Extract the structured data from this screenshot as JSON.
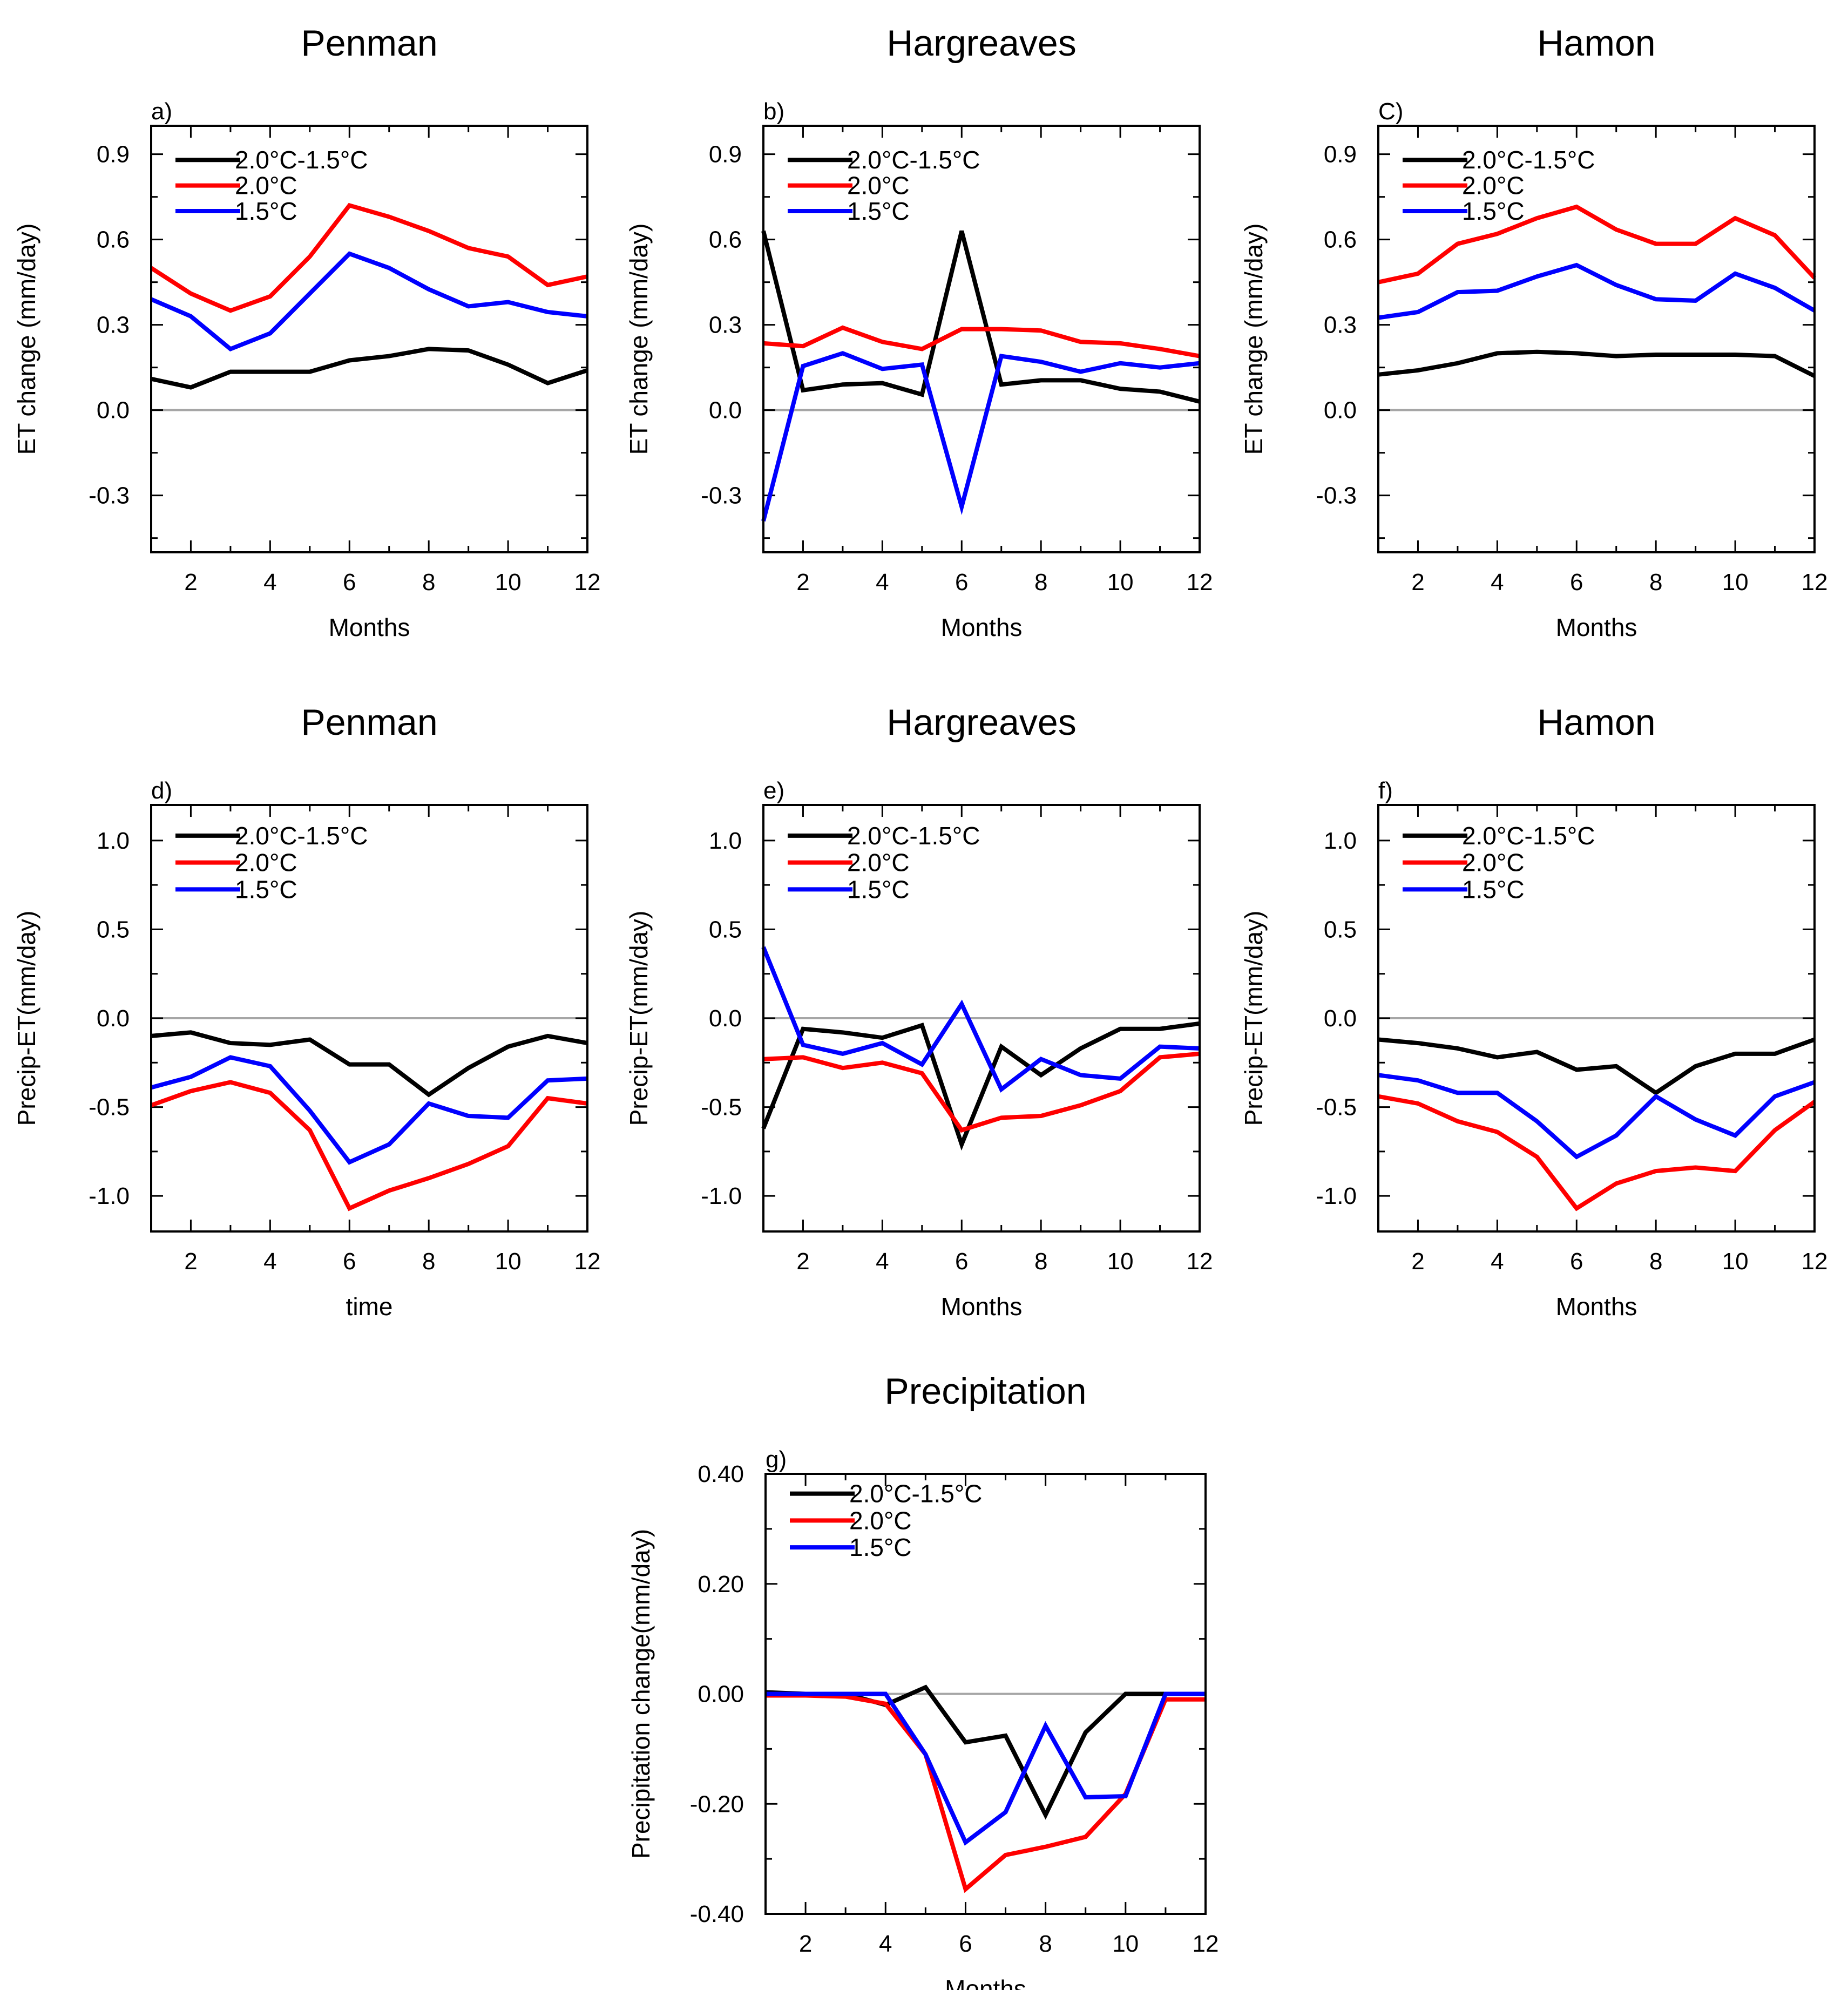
{
  "chart_data": [
    {
      "type": "line",
      "panel_label": "a)",
      "title": "Penman",
      "xlabel": "Months",
      "ylabel": "ET change (mm/day)",
      "xlim": [
        1,
        12
      ],
      "ylim": [
        -0.5,
        1.0
      ],
      "xticks": [
        "2",
        "4",
        "6",
        "8",
        "10",
        "12"
      ],
      "yticks": [
        "0.9",
        "0.6",
        "0.3",
        "0.0",
        "-0.3"
      ],
      "x": [
        1,
        2,
        3,
        4,
        5,
        6,
        7,
        8,
        9,
        10,
        11,
        12
      ],
      "series": [
        {
          "name": "2.0°C-1.5°C",
          "color": "#000000",
          "values": [
            0.11,
            0.08,
            0.135,
            0.135,
            0.135,
            0.175,
            0.19,
            0.215,
            0.21,
            0.16,
            0.095,
            0.14
          ]
        },
        {
          "name": "2.0°C",
          "color": "#ff0000",
          "values": [
            0.5,
            0.41,
            0.35,
            0.4,
            0.54,
            0.72,
            0.68,
            0.63,
            0.57,
            0.54,
            0.44,
            0.47
          ]
        },
        {
          "name": "1.5°C",
          "color": "#0000ff",
          "values": [
            0.39,
            0.33,
            0.215,
            0.27,
            0.41,
            0.55,
            0.5,
            0.425,
            0.365,
            0.38,
            0.345,
            0.33
          ]
        }
      ]
    },
    {
      "type": "line",
      "panel_label": "b)",
      "title": "Hargreaves",
      "xlabel": "Months",
      "ylabel": "ET change (mm/day)",
      "xlim": [
        1,
        12
      ],
      "ylim": [
        -0.5,
        1.0
      ],
      "xticks": [
        "2",
        "4",
        "6",
        "8",
        "10",
        "12"
      ],
      "yticks": [
        "0.9",
        "0.6",
        "0.3",
        "0.0",
        "-0.3"
      ],
      "x": [
        1,
        2,
        3,
        4,
        5,
        6,
        7,
        8,
        9,
        10,
        11,
        12
      ],
      "series": [
        {
          "name": "2.0°C-1.5°C",
          "color": "#000000",
          "values": [
            0.63,
            0.07,
            0.09,
            0.095,
            0.055,
            0.63,
            0.09,
            0.105,
            0.105,
            0.075,
            0.065,
            0.03
          ]
        },
        {
          "name": "2.0°C",
          "color": "#ff0000",
          "values": [
            0.235,
            0.225,
            0.29,
            0.24,
            0.215,
            0.285,
            0.285,
            0.28,
            0.24,
            0.235,
            0.215,
            0.19
          ]
        },
        {
          "name": "1.5°C",
          "color": "#0000ff",
          "values": [
            -0.39,
            0.155,
            0.2,
            0.145,
            0.16,
            -0.34,
            0.19,
            0.17,
            0.135,
            0.165,
            0.15,
            0.165
          ]
        }
      ]
    },
    {
      "type": "line",
      "panel_label": "C)",
      "title": "Hamon",
      "xlabel": "Months",
      "ylabel": "ET change (mm/day)",
      "xlim": [
        1,
        12
      ],
      "ylim": [
        -0.5,
        1.0
      ],
      "xticks": [
        "2",
        "4",
        "6",
        "8",
        "10",
        "12"
      ],
      "yticks": [
        "0.9",
        "0.6",
        "0.3",
        "0.0",
        "-0.3"
      ],
      "x": [
        1,
        2,
        3,
        4,
        5,
        6,
        7,
        8,
        9,
        10,
        11,
        12
      ],
      "series": [
        {
          "name": "2.0°C-1.5°C",
          "color": "#000000",
          "values": [
            0.125,
            0.14,
            0.165,
            0.2,
            0.205,
            0.2,
            0.19,
            0.195,
            0.195,
            0.195,
            0.19,
            0.12
          ]
        },
        {
          "name": "2.0°C",
          "color": "#ff0000",
          "values": [
            0.45,
            0.48,
            0.585,
            0.62,
            0.675,
            0.715,
            0.635,
            0.585,
            0.585,
            0.675,
            0.615,
            0.465
          ]
        },
        {
          "name": "1.5°C",
          "color": "#0000ff",
          "values": [
            0.325,
            0.345,
            0.415,
            0.42,
            0.47,
            0.51,
            0.44,
            0.39,
            0.385,
            0.48,
            0.43,
            0.35
          ]
        }
      ]
    },
    {
      "type": "line",
      "panel_label": "d)",
      "title": "Penman",
      "xlabel": "time",
      "ylabel": "Precip-ET(mm/day)",
      "xlim": [
        1,
        12
      ],
      "ylim": [
        -1.2,
        1.2
      ],
      "xticks": [
        "2",
        "4",
        "6",
        "8",
        "10",
        "12"
      ],
      "yticks": [
        "1.0",
        "0.5",
        "0.0",
        "-0.5",
        "-1.0"
      ],
      "x": [
        1,
        2,
        3,
        4,
        5,
        6,
        7,
        8,
        9,
        10,
        11,
        12
      ],
      "series": [
        {
          "name": "2.0°C-1.5°C",
          "color": "#000000",
          "values": [
            -0.1,
            -0.08,
            -0.14,
            -0.15,
            -0.12,
            -0.26,
            -0.26,
            -0.43,
            -0.28,
            -0.16,
            -0.1,
            -0.14
          ]
        },
        {
          "name": "2.0°C",
          "color": "#ff0000",
          "values": [
            -0.49,
            -0.41,
            -0.36,
            -0.42,
            -0.63,
            -1.07,
            -0.97,
            -0.9,
            -0.82,
            -0.72,
            -0.45,
            -0.48
          ]
        },
        {
          "name": "1.5°C",
          "color": "#0000ff",
          "values": [
            -0.39,
            -0.33,
            -0.22,
            -0.27,
            -0.52,
            -0.81,
            -0.71,
            -0.48,
            -0.55,
            -0.56,
            -0.35,
            -0.34
          ]
        }
      ]
    },
    {
      "type": "line",
      "panel_label": "e)",
      "title": "Hargreaves",
      "xlabel": "Months",
      "ylabel": "Precip-ET(mm/day)",
      "xlim": [
        1,
        12
      ],
      "ylim": [
        -1.2,
        1.2
      ],
      "xticks": [
        "2",
        "4",
        "6",
        "8",
        "10",
        "12"
      ],
      "yticks": [
        "1.0",
        "0.5",
        "0.0",
        "-0.5",
        "-1.0"
      ],
      "x": [
        1,
        2,
        3,
        4,
        5,
        6,
        7,
        8,
        9,
        10,
        11,
        12
      ],
      "series": [
        {
          "name": "2.0°C-1.5°C",
          "color": "#000000",
          "values": [
            -0.62,
            -0.06,
            -0.08,
            -0.11,
            -0.04,
            -0.71,
            -0.16,
            -0.32,
            -0.17,
            -0.06,
            -0.06,
            -0.03
          ]
        },
        {
          "name": "2.0°C",
          "color": "#ff0000",
          "values": [
            -0.23,
            -0.22,
            -0.28,
            -0.25,
            -0.31,
            -0.63,
            -0.56,
            -0.55,
            -0.49,
            -0.41,
            -0.22,
            -0.2
          ]
        },
        {
          "name": "1.5°C",
          "color": "#0000ff",
          "values": [
            0.4,
            -0.15,
            -0.2,
            -0.14,
            -0.26,
            0.08,
            -0.4,
            -0.23,
            -0.32,
            -0.34,
            -0.16,
            -0.17
          ]
        }
      ]
    },
    {
      "type": "line",
      "panel_label": "f)",
      "title": "Hamon",
      "xlabel": "Months",
      "ylabel": "Precip-ET(mm/day)",
      "xlim": [
        1,
        12
      ],
      "ylim": [
        -1.2,
        1.2
      ],
      "xticks": [
        "2",
        "4",
        "6",
        "8",
        "10",
        "12"
      ],
      "yticks": [
        "1.0",
        "0.5",
        "0.0",
        "-0.5",
        "-1.0"
      ],
      "x": [
        1,
        2,
        3,
        4,
        5,
        6,
        7,
        8,
        9,
        10,
        11,
        12
      ],
      "series": [
        {
          "name": "2.0°C-1.5°C",
          "color": "#000000",
          "values": [
            -0.12,
            -0.14,
            -0.17,
            -0.22,
            -0.19,
            -0.29,
            -0.27,
            -0.42,
            -0.27,
            -0.2,
            -0.2,
            -0.12
          ]
        },
        {
          "name": "2.0°C",
          "color": "#ff0000",
          "values": [
            -0.44,
            -0.48,
            -0.58,
            -0.64,
            -0.78,
            -1.07,
            -0.93,
            -0.86,
            -0.84,
            -0.86,
            -0.63,
            -0.47
          ]
        },
        {
          "name": "1.5°C",
          "color": "#0000ff",
          "values": [
            -0.32,
            -0.35,
            -0.42,
            -0.42,
            -0.58,
            -0.78,
            -0.66,
            -0.44,
            -0.57,
            -0.66,
            -0.44,
            -0.36
          ]
        }
      ]
    },
    {
      "type": "line",
      "panel_label": "g)",
      "title": "Precipitation",
      "xlabel": "Months",
      "ylabel": "Precipitation change(mm/day)",
      "xlim": [
        1,
        12
      ],
      "ylim": [
        -0.4,
        0.4
      ],
      "xticks": [
        "2",
        "4",
        "6",
        "8",
        "10",
        "12"
      ],
      "yticks": [
        "0.40",
        "0.20",
        "0.00",
        "-0.20",
        "-0.40"
      ],
      "x": [
        1,
        2,
        3,
        4,
        5,
        6,
        7,
        8,
        9,
        10,
        11,
        12
      ],
      "series": [
        {
          "name": "2.0°C-1.5°C",
          "color": "#000000",
          "values": [
            0.003,
            0.0,
            0.0,
            -0.02,
            0.012,
            -0.088,
            -0.076,
            -0.22,
            -0.07,
            0.0,
            0.0,
            0.0
          ]
        },
        {
          "name": "2.0°C",
          "color": "#ff0000",
          "values": [
            -0.003,
            -0.003,
            -0.005,
            -0.018,
            -0.11,
            -0.355,
            -0.293,
            -0.278,
            -0.26,
            -0.182,
            -0.01,
            -0.01
          ]
        },
        {
          "name": "1.5°C",
          "color": "#0000ff",
          "values": [
            0.0,
            0.0,
            0.0,
            0.0,
            -0.11,
            -0.27,
            -0.215,
            -0.058,
            -0.188,
            -0.186,
            0.0,
            0.0
          ]
        }
      ]
    }
  ]
}
